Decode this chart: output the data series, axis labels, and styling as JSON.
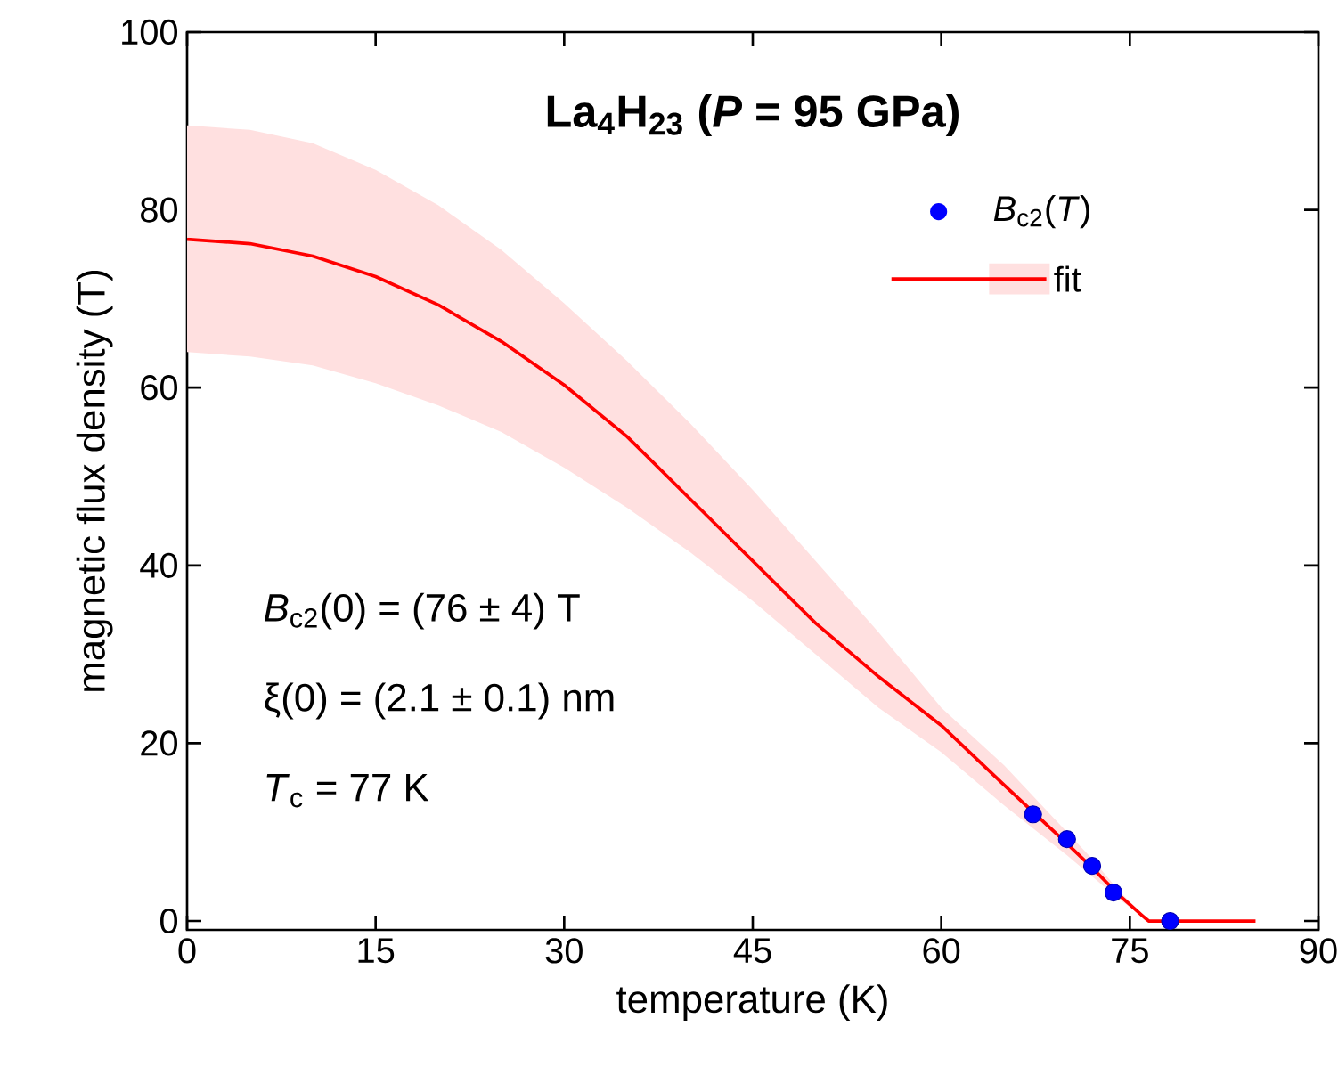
{
  "chart_data": {
    "type": "scatter",
    "title": "La$_{4}$H$_{23}$ (*P* = 95 GPa)",
    "xlabel": "temperature (K)",
    "ylabel": "magnetic flux density (T)",
    "xlim": [
      0,
      90
    ],
    "xticks": [
      0,
      15,
      30,
      45,
      60,
      75,
      90
    ],
    "ylim": [
      -1,
      100
    ],
    "yticks": [
      0,
      20,
      40,
      60,
      80,
      100
    ],
    "legend": "top right",
    "grid": false,
    "annotations": [
      "*B*$_{c2}$(0) = (76 ± 4) T",
      "ξ(0) = (2.1 ± 0.1) nm",
      "*T*$_{c}$ = 77 K"
    ],
    "series": [
      {
        "name": "*B*$_{c2}$(*T*)",
        "marker": "circle",
        "color": "#0000ff",
        "x": [
          67.3,
          70.0,
          72.0,
          73.7,
          78.2
        ],
        "values": [
          12,
          9.2,
          6.2,
          3.2,
          0
        ]
      },
      {
        "name": "fit",
        "type": "line",
        "marker": "none",
        "color": "#ff0000",
        "x": [
          0,
          5,
          10,
          15,
          20,
          25,
          30,
          35,
          40,
          45,
          50,
          55,
          60,
          65,
          70,
          72,
          74,
          76,
          76.5,
          85
        ],
        "values": [
          76.7,
          76.2,
          74.8,
          72.5,
          69.3,
          65.2,
          60.3,
          54.5,
          47.5,
          40.5,
          33.5,
          27.5,
          22.0,
          15.3,
          8.7,
          6.0,
          3.1,
          0.6,
          0,
          0
        ],
        "upper": [
          89.5,
          89,
          87.5,
          84.5,
          80.5,
          75.5,
          69.5,
          63,
          56,
          48.5,
          40.5,
          32.5,
          24,
          17.5,
          10,
          7,
          3.6,
          0.7,
          0,
          null
        ],
        "lower": [
          64,
          63.5,
          62.5,
          60.5,
          58,
          55,
          51,
          46.5,
          41.5,
          36,
          30,
          24,
          19,
          13,
          7.4,
          5,
          2.6,
          0.5,
          0,
          null
        ]
      }
    ]
  }
}
